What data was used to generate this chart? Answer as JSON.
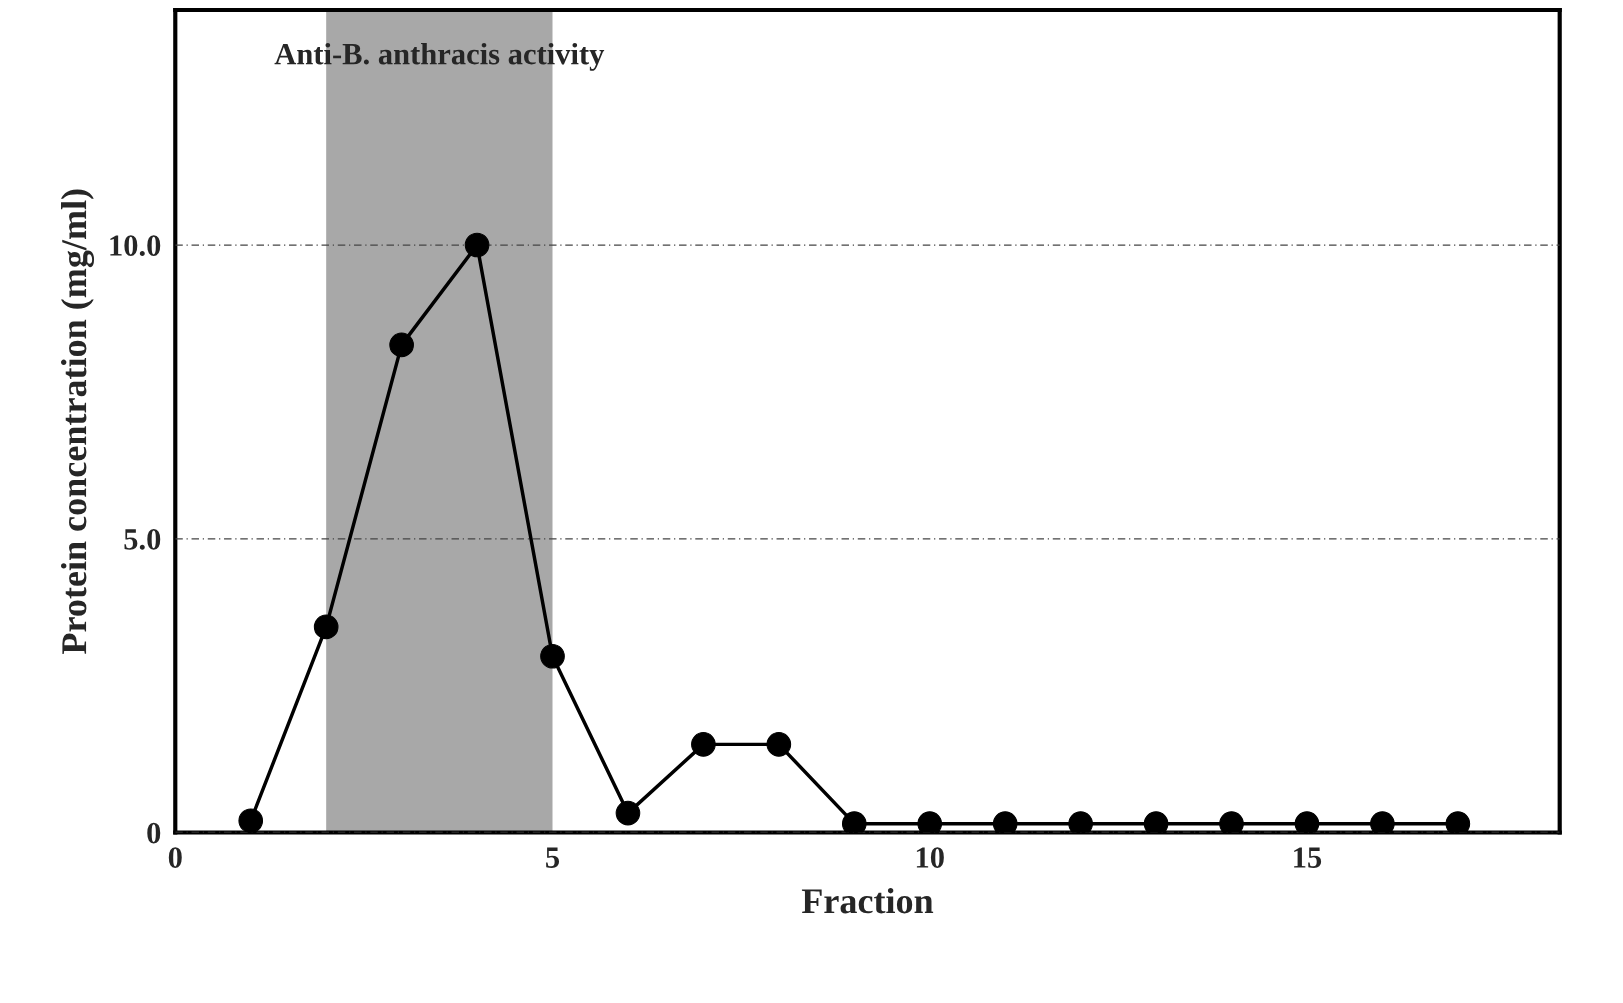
{
  "chart_data": {
    "type": "line",
    "xlabel": "Fraction",
    "ylabel": "Protein concentration (mg/ml)",
    "x": [
      1,
      2,
      3,
      4,
      5,
      6,
      7,
      8,
      9,
      10,
      11,
      12,
      13,
      14,
      15,
      16,
      17
    ],
    "series": [
      {
        "color": "#000000",
        "values": [
          0.2,
          3.5,
          8.3,
          10.0,
          3.0,
          0.33,
          1.5,
          1.5,
          0.15,
          0.15,
          0.15,
          0.15,
          0.15,
          0.15,
          0.15,
          0.15,
          0.15
        ]
      }
    ],
    "marker": "circle",
    "line_style": "solid",
    "xlim": [
      0,
      18.35
    ],
    "xticks": [
      0,
      5,
      10,
      15
    ],
    "ylim": [
      0,
      14
    ],
    "yticks": [
      0,
      {
        "value": 5,
        "label": "5.0"
      },
      {
        "value": 10,
        "label": "10.0"
      }
    ],
    "grid": "y",
    "bands": [
      {
        "axis": "x",
        "from": 2,
        "to": 5,
        "label": "Anti-B. anthracis activity",
        "color": "#a8a8a8"
      }
    ]
  }
}
